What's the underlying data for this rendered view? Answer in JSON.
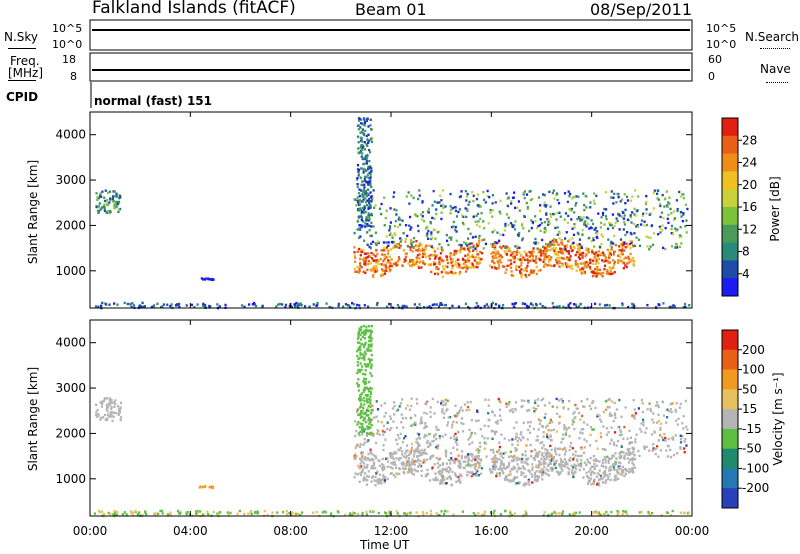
{
  "header": {
    "title": "Falkland Islands (fitACF)",
    "beam": "Beam 01",
    "date": "08/Sep/2011"
  },
  "noise_panel": {
    "left_label": "N.Sky",
    "right_label": "N.Search",
    "left_ticks": [
      "10^5",
      "10^0"
    ],
    "right_ticks": [
      "10^5",
      "10^0"
    ]
  },
  "freq_panel": {
    "left_label_top": "Freq.",
    "left_label_unit": "[MHz]",
    "right_label": "Nave",
    "left_ticks": [
      "18",
      "8"
    ],
    "right_ticks": [
      "60",
      "0"
    ]
  },
  "cpid": {
    "label": "CPID",
    "value": "normal (fast) 151"
  },
  "axes": {
    "ylabel": "Slant Range [km]",
    "xlabel": "Time UT",
    "y_ticks": [
      "4000",
      "3000",
      "2000",
      "1000"
    ],
    "x_ticks": [
      "00:00",
      "04:00",
      "08:00",
      "12:00",
      "16:00",
      "20:00",
      "00:00"
    ]
  },
  "colors": {
    "power_scale": [
      "#1c1cf0",
      "#1e4aa8",
      "#2a8a7a",
      "#4a9a5a",
      "#7cc23c",
      "#c8d23a",
      "#f0c020",
      "#f08c18",
      "#e86018",
      "#e02010"
    ],
    "velocity_scale": [
      "#2a40b8",
      "#247ab0",
      "#1f8a6e",
      "#5dc043",
      "#b4b4b4",
      "#e8c060",
      "#f09a20",
      "#e86018",
      "#e02010"
    ]
  },
  "chart_data": [
    {
      "type": "line",
      "name": "noise",
      "x_range": [
        0,
        24
      ],
      "scale": "log",
      "ylim_exponent": [
        0,
        5
      ]
    },
    {
      "type": "scatter",
      "name": "frequency",
      "x_range": [
        0,
        24
      ],
      "ylim": [
        8,
        18
      ]
    },
    {
      "type": "heatmap",
      "name": "power",
      "xlabel": "Time UT",
      "ylabel": "Slant Range [km]",
      "x_range_hours": [
        0,
        24
      ],
      "ylim": [
        180,
        4500
      ],
      "colorbar": {
        "label": "Power [dB]",
        "ticks": [
          "28",
          "24",
          "20",
          "16",
          "12",
          "8",
          "4"
        ],
        "range": [
          0,
          30
        ]
      },
      "features": [
        {
          "desc": "dense band",
          "x_hours": [
            10.5,
            15.7
          ],
          "y_km": [
            1000,
            1600
          ],
          "value_db": 24
        },
        {
          "desc": "dense band",
          "x_hours": [
            15.8,
            21.6
          ],
          "y_km": [
            1000,
            1700
          ],
          "value_db": 24
        }
      ]
    },
    {
      "type": "heatmap",
      "name": "velocity",
      "xlabel": "Time UT",
      "ylabel": "Slant Range [km]",
      "x_range_hours": [
        0,
        24
      ],
      "ylim": [
        180,
        4500
      ],
      "colorbar": {
        "label": "Velocity [m s⁻¹]",
        "ticks": [
          "200",
          "100",
          "50",
          "15",
          "-15",
          "-50",
          "-100",
          "-200"
        ],
        "range": [
          -250,
          250
        ]
      }
    }
  ]
}
